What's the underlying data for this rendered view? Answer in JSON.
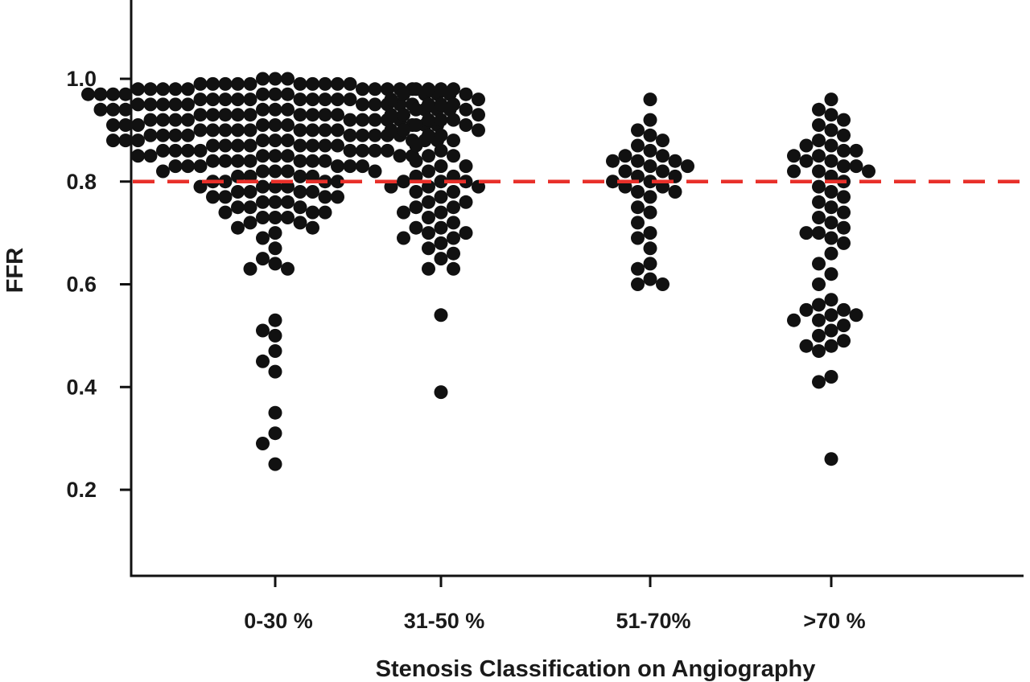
{
  "chart_data": {
    "type": "scatter",
    "subtype": "beeswarm",
    "title": "",
    "xlabel": "Stenosis Classification on Angiography",
    "ylabel": "FFR",
    "ylim": [
      0.07,
      1.15
    ],
    "yticks": [
      0.2,
      0.4,
      0.6,
      0.8,
      1.0
    ],
    "ytick_labels": [
      "0.2",
      "0.4",
      "0.6",
      "0.8",
      "1.0"
    ],
    "categories": [
      "0-30 %",
      "31-50 %",
      "51-70%",
      ">70 %"
    ],
    "reference_line": {
      "value": 0.8,
      "style": "dashed"
    },
    "colors": {
      "points": "#111111",
      "reference_line": "#e8302a",
      "axis": "#111111"
    },
    "series": [
      {
        "name": "0-30 %",
        "values": [
          1.0,
          1.0,
          1.0,
          0.99,
          0.99,
          0.99,
          0.99,
          0.99,
          0.99,
          0.99,
          0.99,
          0.99,
          0.99,
          0.98,
          0.98,
          0.98,
          0.98,
          0.98,
          0.98,
          0.98,
          0.98,
          0.98,
          0.98,
          0.97,
          0.97,
          0.97,
          0.97,
          0.97,
          0.97,
          0.97,
          0.97,
          0.97,
          0.97,
          0.96,
          0.96,
          0.96,
          0.96,
          0.96,
          0.96,
          0.96,
          0.96,
          0.96,
          0.96,
          0.95,
          0.95,
          0.95,
          0.95,
          0.95,
          0.95,
          0.95,
          0.95,
          0.95,
          0.95,
          0.94,
          0.94,
          0.94,
          0.94,
          0.94,
          0.94,
          0.94,
          0.94,
          0.94,
          0.93,
          0.93,
          0.93,
          0.93,
          0.93,
          0.93,
          0.93,
          0.93,
          0.93,
          0.92,
          0.92,
          0.92,
          0.92,
          0.92,
          0.92,
          0.92,
          0.92,
          0.92,
          0.91,
          0.91,
          0.91,
          0.91,
          0.91,
          0.91,
          0.91,
          0.91,
          0.91,
          0.9,
          0.9,
          0.9,
          0.9,
          0.9,
          0.9,
          0.9,
          0.9,
          0.9,
          0.89,
          0.89,
          0.89,
          0.89,
          0.89,
          0.89,
          0.89,
          0.89,
          0.89,
          0.88,
          0.88,
          0.88,
          0.88,
          0.88,
          0.88,
          0.88,
          0.88,
          0.88,
          0.87,
          0.87,
          0.87,
          0.87,
          0.87,
          0.87,
          0.87,
          0.87,
          0.86,
          0.86,
          0.86,
          0.86,
          0.86,
          0.86,
          0.86,
          0.86,
          0.85,
          0.85,
          0.85,
          0.85,
          0.85,
          0.85,
          0.85,
          0.84,
          0.84,
          0.84,
          0.84,
          0.84,
          0.84,
          0.84,
          0.83,
          0.83,
          0.83,
          0.83,
          0.83,
          0.83,
          0.82,
          0.82,
          0.82,
          0.82,
          0.82,
          0.81,
          0.81,
          0.81,
          0.81,
          0.8,
          0.8,
          0.8,
          0.8,
          0.79,
          0.79,
          0.79,
          0.79,
          0.78,
          0.78,
          0.78,
          0.78,
          0.77,
          0.77,
          0.77,
          0.77,
          0.76,
          0.76,
          0.76,
          0.75,
          0.75,
          0.75,
          0.74,
          0.74,
          0.74,
          0.73,
          0.73,
          0.73,
          0.72,
          0.72,
          0.71,
          0.71,
          0.7,
          0.69,
          0.67,
          0.65,
          0.64,
          0.63,
          0.63,
          0.53,
          0.51,
          0.5,
          0.47,
          0.45,
          0.43,
          0.35,
          0.31,
          0.29,
          0.25
        ]
      },
      {
        "name": "31-50 %",
        "values": [
          0.98,
          0.98,
          0.98,
          0.98,
          0.97,
          0.97,
          0.96,
          0.96,
          0.95,
          0.95,
          0.95,
          0.94,
          0.94,
          0.93,
          0.93,
          0.93,
          0.92,
          0.92,
          0.92,
          0.91,
          0.91,
          0.9,
          0.9,
          0.9,
          0.89,
          0.89,
          0.88,
          0.87,
          0.86,
          0.85,
          0.85,
          0.84,
          0.83,
          0.83,
          0.82,
          0.81,
          0.81,
          0.8,
          0.8,
          0.8,
          0.79,
          0.79,
          0.79,
          0.78,
          0.78,
          0.77,
          0.76,
          0.76,
          0.75,
          0.75,
          0.74,
          0.74,
          0.73,
          0.72,
          0.71,
          0.71,
          0.7,
          0.7,
          0.69,
          0.69,
          0.68,
          0.67,
          0.66,
          0.65,
          0.63,
          0.63,
          0.54,
          0.39
        ]
      },
      {
        "name": "51-70%",
        "values": [
          0.96,
          0.92,
          0.9,
          0.89,
          0.88,
          0.87,
          0.86,
          0.85,
          0.85,
          0.84,
          0.84,
          0.84,
          0.83,
          0.83,
          0.82,
          0.82,
          0.81,
          0.81,
          0.8,
          0.8,
          0.79,
          0.79,
          0.78,
          0.78,
          0.77,
          0.75,
          0.74,
          0.72,
          0.7,
          0.69,
          0.67,
          0.64,
          0.63,
          0.61,
          0.6,
          0.6
        ]
      },
      {
        "name": ">70 %",
        "values": [
          0.96,
          0.94,
          0.93,
          0.92,
          0.91,
          0.9,
          0.89,
          0.88,
          0.87,
          0.87,
          0.86,
          0.86,
          0.85,
          0.85,
          0.84,
          0.84,
          0.83,
          0.83,
          0.82,
          0.82,
          0.82,
          0.81,
          0.8,
          0.79,
          0.78,
          0.77,
          0.76,
          0.75,
          0.74,
          0.73,
          0.72,
          0.71,
          0.7,
          0.7,
          0.69,
          0.68,
          0.66,
          0.64,
          0.62,
          0.6,
          0.57,
          0.56,
          0.55,
          0.55,
          0.54,
          0.54,
          0.53,
          0.53,
          0.52,
          0.51,
          0.5,
          0.49,
          0.48,
          0.48,
          0.47,
          0.42,
          0.41,
          0.26
        ]
      }
    ]
  }
}
